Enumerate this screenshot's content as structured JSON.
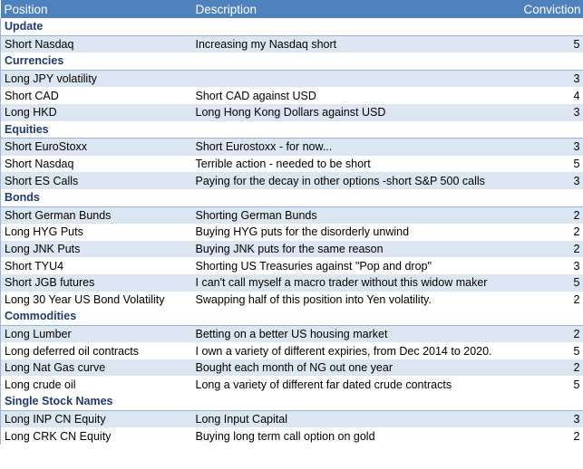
{
  "header": {
    "position": "Position",
    "description": "Description",
    "conviction": "Conviction"
  },
  "sections": [
    {
      "title": "Update",
      "rows": [
        {
          "position": "Short Nasdaq",
          "description": "Increasing my Nasdaq short",
          "conviction": "5"
        }
      ]
    },
    {
      "title": "Currencies",
      "rows": [
        {
          "position": "Long JPY volatility",
          "description": "",
          "conviction": "3"
        },
        {
          "position": "Short CAD",
          "description": "Short CAD against USD",
          "conviction": "4"
        },
        {
          "position": "Long HKD",
          "description": "Long Hong Kong Dollars against USD",
          "conviction": "3"
        }
      ]
    },
    {
      "title": "Equities",
      "rows": [
        {
          "position": "Short EuroStoxx",
          "description": "Short Eurostoxx - for now...",
          "conviction": "3"
        },
        {
          "position": "Short Nasdaq",
          "description": "Terrible action - needed to be short",
          "conviction": "5"
        },
        {
          "position": "Short ES Calls",
          "description": "Paying for the decay in other options -short S&P 500 calls",
          "conviction": "3"
        }
      ]
    },
    {
      "title": "Bonds",
      "rows": [
        {
          "position": "Short German Bunds",
          "description": "Shorting German Bunds",
          "conviction": "2"
        },
        {
          "position": "Long HYG Puts",
          "description": "Buying HYG puts for the disorderly unwind",
          "conviction": "2"
        },
        {
          "position": "Long JNK Puts",
          "description": "Buying JNK puts for the same reason",
          "conviction": "2"
        },
        {
          "position": "Short TYU4",
          "description": "Shorting US Treasuries against \"Pop and drop\"",
          "conviction": "3"
        },
        {
          "position": "Short JGB futures",
          "description": "I can't call myself a macro trader without this widow maker",
          "conviction": "5"
        },
        {
          "position": "Long 30 Year US Bond Volatility",
          "description": "Swapping half of this position into Yen volatility.",
          "conviction": "2"
        }
      ]
    },
    {
      "title": "Commodities",
      "rows": [
        {
          "position": "Long Lumber",
          "description": "Betting on a better US housing market",
          "conviction": "2"
        },
        {
          "position": "Long deferred oil contracts",
          "description": "I own a variety of different expiries, from Dec 2014 to 2020.",
          "conviction": "5"
        },
        {
          "position": "Long Nat Gas curve",
          "description": "Bought each month of NG out one year",
          "conviction": "2"
        },
        {
          "position": "Long crude oil",
          "description": "Long a variety of different far dated crude contracts",
          "conviction": "5"
        }
      ]
    },
    {
      "title": "Single Stock Names",
      "rows": [
        {
          "position": "Long INP CN Equity",
          "description": "Long Input Capital",
          "conviction": "3"
        },
        {
          "position": "Long CRK CN Equity",
          "description": "Buying long term call option on gold",
          "conviction": "2"
        }
      ]
    }
  ]
}
